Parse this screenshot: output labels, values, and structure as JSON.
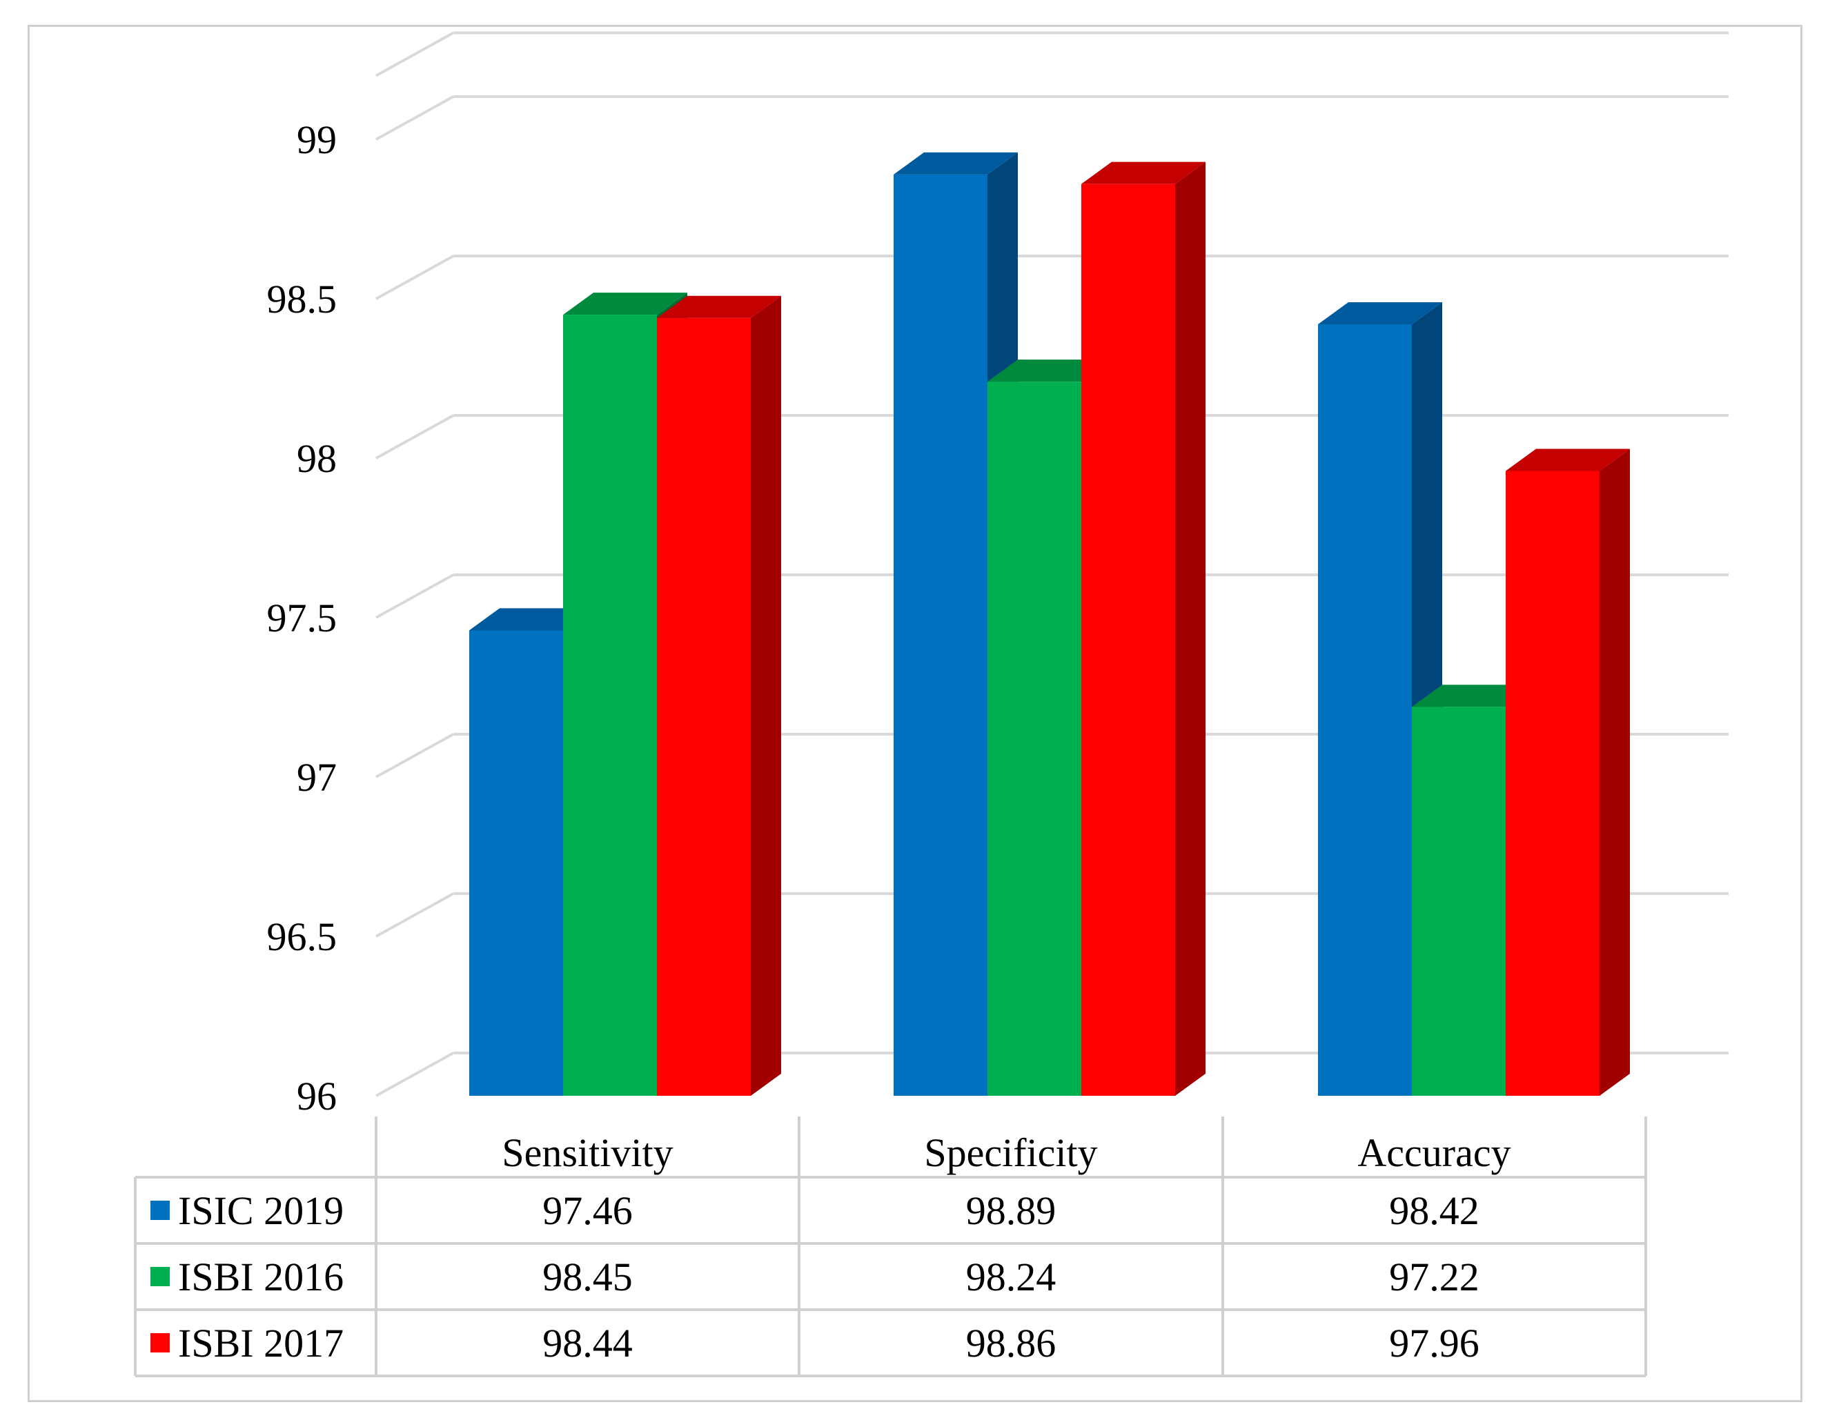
{
  "chart_data": {
    "type": "bar",
    "style": "3d-clustered-column-with-data-table",
    "title": "",
    "xlabel": "",
    "ylabel": "",
    "ylim": [
      96,
      99.2
    ],
    "y_ticks": [
      {
        "value": 96,
        "label": "96"
      },
      {
        "value": 96.5,
        "label": "96.5"
      },
      {
        "value": 97,
        "label": "97"
      },
      {
        "value": 97.5,
        "label": "97.5"
      },
      {
        "value": 98,
        "label": "98"
      },
      {
        "value": 98.5,
        "label": "98.5"
      },
      {
        "value": 99,
        "label": "99"
      }
    ],
    "categories": [
      "Sensitivity",
      "Specificity",
      "Accuracy"
    ],
    "series": [
      {
        "name": "ISIC 2019",
        "color": "#0070C0",
        "side_color": "#00467A",
        "top_color": "#005A9E",
        "values": [
          97.46,
          98.89,
          98.42
        ],
        "value_labels": [
          "97.46",
          "98.89",
          "98.42"
        ]
      },
      {
        "name": "ISBI 2016",
        "color": "#00B050",
        "side_color": "#006E32",
        "top_color": "#008A3E",
        "values": [
          98.45,
          98.24,
          97.22
        ],
        "value_labels": [
          "98.45",
          "98.24",
          "97.22"
        ]
      },
      {
        "name": "ISBI 2017",
        "color": "#FF0000",
        "side_color": "#A00000",
        "top_color": "#C40000",
        "values": [
          98.44,
          98.86,
          97.96
        ],
        "value_labels": [
          "98.44",
          "98.86",
          "97.96"
        ]
      }
    ],
    "grid": true,
    "legend": "in-data-table"
  }
}
